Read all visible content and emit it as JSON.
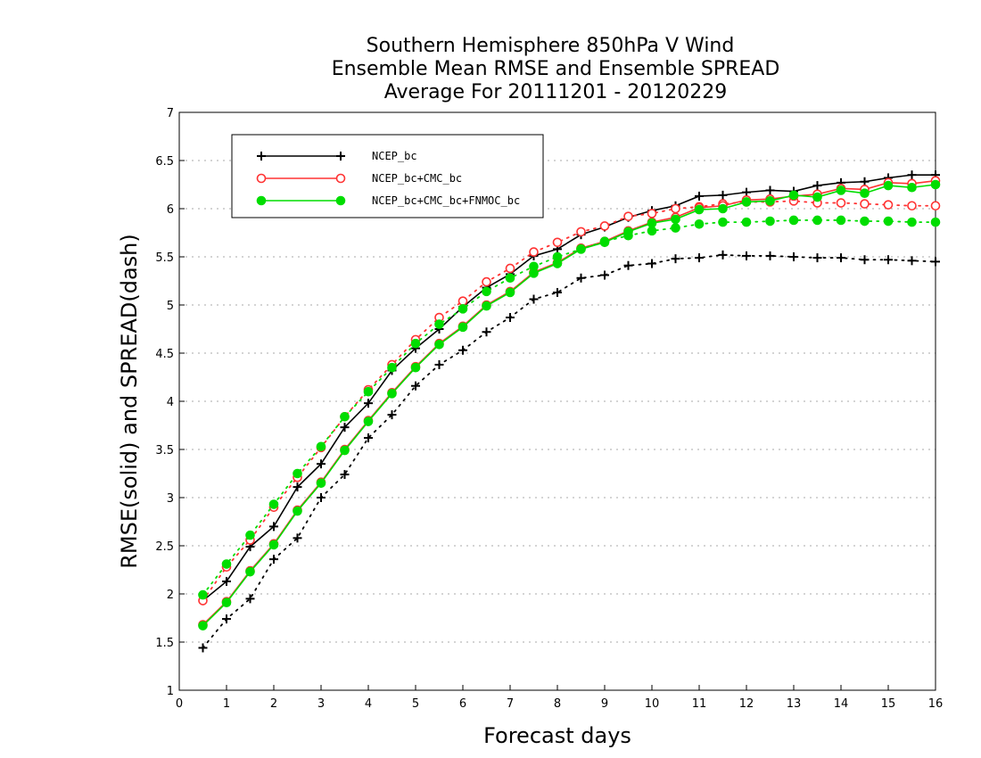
{
  "chart_data": {
    "type": "line",
    "title": [
      "Southern Hemisphere 850hPa V Wind",
      "Ensemble Mean RMSE and Ensemble SPREAD",
      "Average For 20111201 - 20120229"
    ],
    "xlabel": "Forecast days",
    "ylabel": "RMSE(solid) and SPREAD(dash)",
    "xlim": [
      0,
      16
    ],
    "ylim": [
      1,
      7
    ],
    "xticks": [
      "0",
      "1",
      "2",
      "3",
      "4",
      "5",
      "6",
      "7",
      "8",
      "9",
      "10",
      "11",
      "12",
      "13",
      "14",
      "15",
      "16"
    ],
    "yticks": [
      "1",
      "1.5",
      "2",
      "2.5",
      "3",
      "3.5",
      "4",
      "4.5",
      "5",
      "5.5",
      "6",
      "6.5",
      "7"
    ],
    "grid": true,
    "legend_position": "top-left",
    "x": [
      0.5,
      1,
      1.5,
      2,
      2.5,
      3,
      3.5,
      4,
      4.5,
      5,
      5.5,
      6,
      6.5,
      7,
      7.5,
      8,
      8.5,
      9,
      9.5,
      10,
      10.5,
      11,
      11.5,
      12,
      12.5,
      13,
      13.5,
      14,
      14.5,
      15,
      15.5,
      16
    ],
    "series": [
      {
        "name": "NCEP_bc",
        "color": "#000000",
        "marker": "plus",
        "rmse": [
          1.93,
          2.13,
          2.49,
          2.7,
          3.11,
          3.35,
          3.73,
          3.98,
          4.32,
          4.55,
          4.75,
          4.98,
          5.18,
          5.32,
          5.51,
          5.58,
          5.73,
          5.81,
          5.91,
          5.98,
          6.03,
          6.13,
          6.14,
          6.17,
          6.19,
          6.18,
          6.24,
          6.27,
          6.28,
          6.32,
          6.35,
          6.35
        ],
        "spread": [
          1.44,
          1.74,
          1.95,
          2.36,
          2.58,
          3.0,
          3.24,
          3.62,
          3.86,
          4.16,
          4.38,
          4.53,
          4.72,
          4.87,
          5.06,
          5.13,
          5.28,
          5.31,
          5.41,
          5.43,
          5.48,
          5.49,
          5.52,
          5.51,
          5.51,
          5.5,
          5.49,
          5.49,
          5.47,
          5.47,
          5.46,
          5.45
        ]
      },
      {
        "name": "NCEP_bc+CMC_bc",
        "color": "#ff3333",
        "marker": "open-circle",
        "rmse": [
          1.68,
          1.92,
          2.24,
          2.52,
          2.87,
          3.16,
          3.5,
          3.8,
          4.09,
          4.36,
          4.6,
          4.78,
          5.0,
          5.14,
          5.34,
          5.44,
          5.59,
          5.66,
          5.77,
          5.86,
          5.91,
          6.01,
          6.03,
          6.09,
          6.1,
          6.13,
          6.15,
          6.21,
          6.2,
          6.27,
          6.26,
          6.29
        ],
        "spread": [
          1.93,
          2.28,
          2.56,
          2.9,
          3.21,
          3.52,
          3.84,
          4.12,
          4.38,
          4.64,
          4.87,
          5.04,
          5.24,
          5.38,
          5.55,
          5.65,
          5.76,
          5.82,
          5.92,
          5.95,
          6.0,
          6.02,
          6.05,
          6.07,
          6.07,
          6.08,
          6.06,
          6.06,
          6.05,
          6.04,
          6.03,
          6.03
        ]
      },
      {
        "name": "NCEP_bc+CMC_bc+FNMOC_bc",
        "color": "#00dd00",
        "marker": "filled-circle",
        "rmse": [
          1.67,
          1.91,
          2.23,
          2.51,
          2.86,
          3.15,
          3.49,
          3.79,
          4.08,
          4.35,
          4.59,
          4.77,
          4.99,
          5.13,
          5.33,
          5.43,
          5.58,
          5.65,
          5.76,
          5.85,
          5.89,
          5.99,
          6.0,
          6.07,
          6.08,
          6.14,
          6.12,
          6.19,
          6.16,
          6.24,
          6.22,
          6.25
        ],
        "spread": [
          1.99,
          2.31,
          2.61,
          2.93,
          3.25,
          3.53,
          3.84,
          4.1,
          4.35,
          4.6,
          4.8,
          4.96,
          5.14,
          5.28,
          5.4,
          5.5,
          5.58,
          5.66,
          5.72,
          5.77,
          5.8,
          5.84,
          5.86,
          5.86,
          5.87,
          5.88,
          5.88,
          5.88,
          5.87,
          5.87,
          5.86,
          5.86
        ]
      }
    ]
  }
}
